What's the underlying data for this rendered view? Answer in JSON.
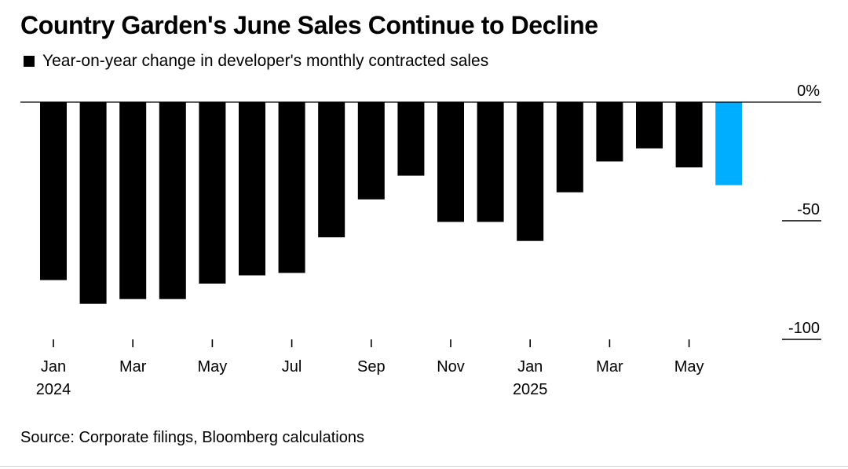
{
  "title": "Country Garden's June Sales Continue to Decline",
  "legend_label": "Year-on-year change in developer's monthly contracted sales",
  "source": "Source: Corporate filings, Bloomberg calculations",
  "colors": {
    "bar": "#000000",
    "highlight": "#00aeff",
    "axis": "#000000"
  },
  "chart_data": {
    "type": "bar",
    "title": "Country Garden's June Sales Continue to Decline",
    "subtitle": "Year-on-year change in developer's monthly contracted sales",
    "categories": [
      "2024-01",
      "2024-02",
      "2024-03",
      "2024-04",
      "2024-05",
      "2024-06",
      "2024-07",
      "2024-08",
      "2024-09",
      "2024-10",
      "2024-11",
      "2024-12",
      "2025-01",
      "2025-02",
      "2025-03",
      "2025-04",
      "2025-05",
      "2025-06"
    ],
    "values": [
      -75,
      -85,
      -83,
      -83,
      -76.5,
      -73,
      -72,
      -57,
      -41,
      -31,
      -50.5,
      -50.5,
      -58.5,
      -38,
      -25,
      -19.5,
      -27.5,
      -35
    ],
    "highlight_index": 17,
    "ylim": [
      -100,
      0
    ],
    "y_ticks": [
      {
        "value": 0,
        "label": "0%"
      },
      {
        "value": -50,
        "label": "-50"
      },
      {
        "value": -100,
        "label": "-100"
      }
    ],
    "x_ticks": [
      {
        "index": 0,
        "label": "Jan",
        "year": "2024"
      },
      {
        "index": 2,
        "label": "Mar",
        "year": ""
      },
      {
        "index": 4,
        "label": "May",
        "year": ""
      },
      {
        "index": 6,
        "label": "Jul",
        "year": ""
      },
      {
        "index": 8,
        "label": "Sep",
        "year": ""
      },
      {
        "index": 10,
        "label": "Nov",
        "year": ""
      },
      {
        "index": 12,
        "label": "Jan",
        "year": "2025"
      },
      {
        "index": 14,
        "label": "Mar",
        "year": ""
      },
      {
        "index": 16,
        "label": "May",
        "year": ""
      }
    ],
    "xlabel": "",
    "ylabel": "",
    "y_axis_position": "right",
    "grid": false
  }
}
